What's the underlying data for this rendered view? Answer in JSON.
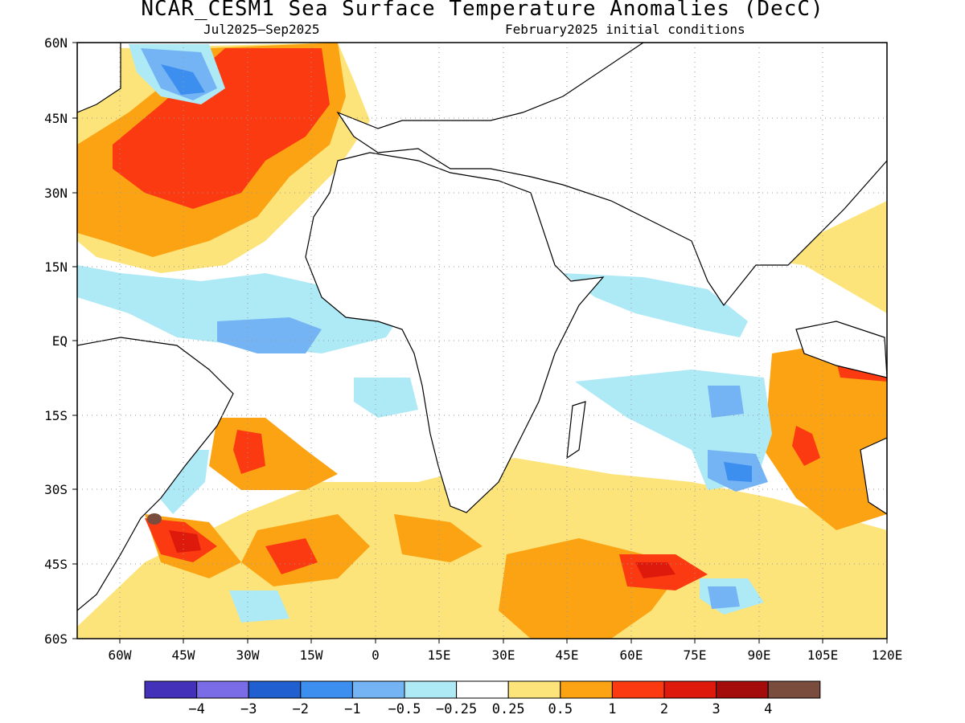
{
  "title": "NCAR_CESM1 Sea Surface Temperature Anomalies (DecC)",
  "period": "Jul2025—Sep2025",
  "init": "February2025 initial conditions",
  "lat_ticks": [
    "60N",
    "45N",
    "30N",
    "15N",
    "EQ",
    "15S",
    "30S",
    "45S",
    "60S"
  ],
  "lon_ticks": [
    "60W",
    "45W",
    "30W",
    "15W",
    "0",
    "15E",
    "30E",
    "45E",
    "60E",
    "75E",
    "90E",
    "105E",
    "120E"
  ],
  "map": {
    "lon_range": [
      -70,
      120
    ],
    "lat_range": [
      -60,
      60
    ],
    "grid": "dotted"
  },
  "colorbar": {
    "colors": [
      "#4331b9",
      "#7a6be6",
      "#1f5fcf",
      "#3d8fef",
      "#74b4f5",
      "#aee9f6",
      "#ffffff",
      "#fde47a",
      "#fba313",
      "#fb3a12",
      "#dd1a0c",
      "#a40b0b",
      "#7a4c3e"
    ],
    "labels": [
      "−4",
      "−3",
      "−2",
      "−1",
      "−0.5",
      "−0.25",
      "0.25",
      "0.5",
      "1",
      "2",
      "3",
      "4"
    ]
  }
}
